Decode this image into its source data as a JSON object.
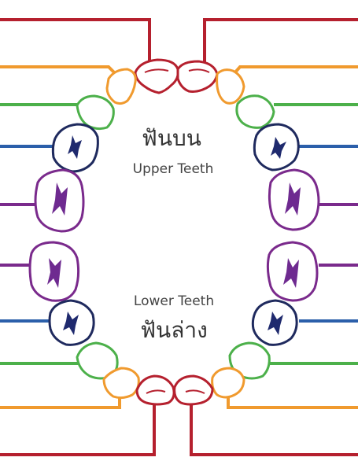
{
  "labels": {
    "upper_thai": "ฟันบน",
    "upper_english": "Upper Teeth",
    "lower_english": "Lower Teeth",
    "lower_thai": "ฟันล่าง"
  },
  "colors": {
    "central_incisor": "#b5202e",
    "lateral_incisor": "#f09a2e",
    "canine": "#4cb04a",
    "first_molar": "#2b5faa",
    "second_molar": "#7a2a8c",
    "molar_outline_dark": "#1f2a5e",
    "molar_cusp_fill": "#1f2a6e",
    "second_molar_cusp_fill": "#6e2a90"
  },
  "tooth_types": [
    "central-incisor",
    "lateral-incisor",
    "canine",
    "first-molar",
    "second-molar"
  ]
}
